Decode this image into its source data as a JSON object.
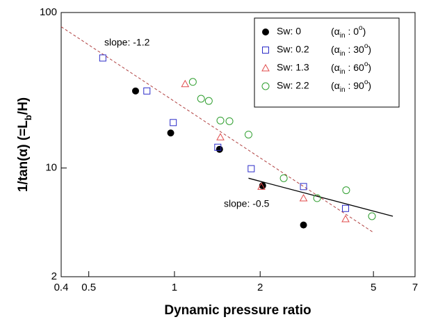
{
  "chart_data": {
    "type": "scatter",
    "xlabel": "Dynamic pressure ratio",
    "ylabel_parts": [
      "1/tan(",
      "α",
      ") (=L",
      "b",
      "/H)"
    ],
    "xlog": true,
    "ylog": true,
    "xlim": [
      0.4,
      7
    ],
    "ylim": [
      2,
      100
    ],
    "xticks": [
      0.4,
      0.5,
      1,
      2,
      5,
      7
    ],
    "yticks": [
      2,
      10,
      100
    ],
    "legend": "upper right",
    "series": [
      {
        "name": "Sw: 0",
        "label_parts": [
          "(α",
          "in",
          " : 0",
          "o",
          ")"
        ],
        "marker": "filled-circle",
        "color": "#000000",
        "x": [
          0.73,
          0.97,
          1.44,
          2.04,
          2.84
        ],
        "values": [
          31.3,
          16.8,
          13.2,
          7.7,
          4.3
        ]
      },
      {
        "name": "Sw: 0.2",
        "label_parts": [
          "(α",
          "in",
          " : 30",
          "o",
          ")"
        ],
        "marker": "square",
        "color": "#2b2bc8",
        "x": [
          0.56,
          0.8,
          0.99,
          1.42,
          1.86,
          2.84,
          3.99
        ],
        "values": [
          51,
          31.3,
          19.6,
          13.6,
          9.9,
          7.6,
          5.5
        ]
      },
      {
        "name": "Sw: 1.3",
        "label_parts": [
          "(α",
          "in",
          " : 60",
          "o",
          ")"
        ],
        "marker": "triangle",
        "color": "#e04a4a",
        "x": [
          1.09,
          1.45,
          2.02,
          2.84,
          3.99
        ],
        "values": [
          34.7,
          15.8,
          7.6,
          6.4,
          4.7
        ]
      },
      {
        "name": "Sw: 2.2",
        "label_parts": [
          "(α",
          "in",
          " : 90",
          "o",
          ")"
        ],
        "marker": "circle",
        "color": "#2e9e2e",
        "x": [
          1.16,
          1.24,
          1.32,
          1.45,
          1.56,
          1.82,
          2.42,
          3.17,
          4.01,
          4.94
        ],
        "values": [
          35.8,
          27.9,
          27.0,
          20.2,
          20.0,
          16.4,
          8.6,
          6.4,
          7.2,
          4.9
        ]
      }
    ],
    "fit_lines": [
      {
        "label": "slope: -1.2",
        "color": "#b04040",
        "dashed": true,
        "x": [
          0.4,
          5
        ],
        "values": [
          81,
          3.85
        ]
      },
      {
        "label": "slope: -0.5",
        "color": "#000000",
        "dashed": false,
        "x": [
          1.82,
          5.85
        ],
        "values": [
          8.6,
          4.9
        ]
      }
    ]
  }
}
